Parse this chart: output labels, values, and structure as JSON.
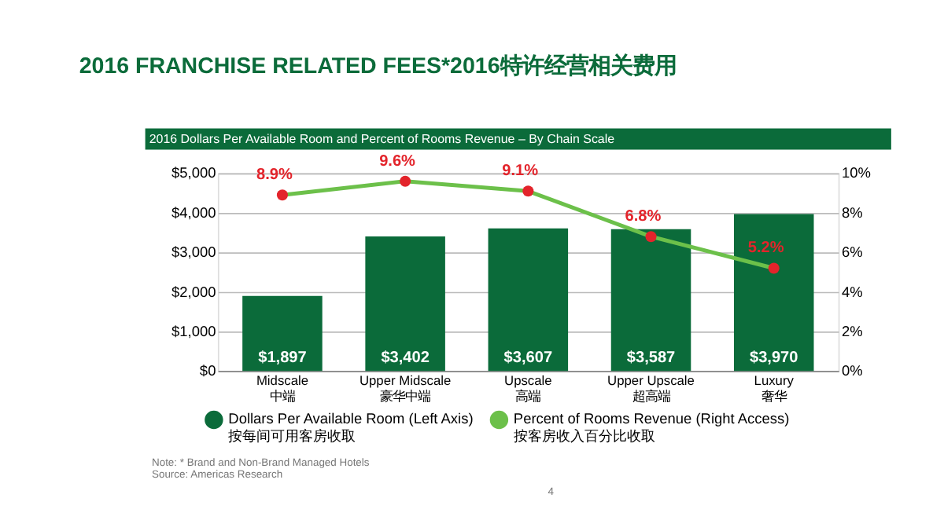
{
  "chart_data": {
    "type": "bar",
    "title": "2016 FRANCHISE RELATED FEES*2016特许经营相关费用",
    "subtitle": "2016 Dollars Per Available Room and Percent of Rooms Revenue – By Chain Scale",
    "categories": [
      "Midscale\n中端",
      "Upper Midscale\n豪华中端",
      "Upscale\n高端",
      "Upper Upscale\n超高端",
      "Luxury\n奢华"
    ],
    "series": [
      {
        "name": "Dollars Per Available Room (Left Axis)\n按每间可用客房收取",
        "color": "#0b6b3a",
        "values": [
          1897,
          3402,
          3607,
          3587,
          3970
        ],
        "value_labels": [
          "$1,897",
          "$3,402",
          "$3,607",
          "$3,587",
          "$3,970"
        ]
      },
      {
        "name": "Percent of Rooms Revenue (Right Access)\n按客房收入百分比收取",
        "type": "line",
        "axis": "y2",
        "color": "#6cc04a",
        "colors": [
          "#e3242b",
          "#e3242b",
          "#e3242b",
          "#e3242b",
          "#e3242b"
        ],
        "values": [
          8.9,
          9.6,
          9.1,
          6.8,
          5.2
        ],
        "value_labels": [
          "8.9%",
          "9.6%",
          "9.1%",
          "6.8%",
          "5.2%"
        ]
      }
    ],
    "ylim": [
      0,
      5000
    ],
    "yticks": [
      {
        "value": 0,
        "label": "$0"
      },
      {
        "value": 1000,
        "label": "$1,000"
      },
      {
        "value": 2000,
        "label": "$2,000"
      },
      {
        "value": 3000,
        "label": "$3,000"
      },
      {
        "value": 4000,
        "label": "$4,000"
      },
      {
        "value": 5000,
        "label": "$5,000"
      }
    ],
    "y2lim": [
      0,
      10
    ],
    "y2ticks": [
      {
        "value": 0,
        "label": "0%"
      },
      {
        "value": 2,
        "label": "2%"
      },
      {
        "value": 4,
        "label": "4%"
      },
      {
        "value": 6,
        "label": "6%"
      },
      {
        "value": 8,
        "label": "8%"
      },
      {
        "value": 10,
        "label": "10%"
      }
    ],
    "grid": "y",
    "legend": "bottom",
    "marker": "circle",
    "data_labels": true,
    "annotations": [
      "Note: * Brand and Non-Brand Managed Hotels",
      "Source: Americas Research",
      "4"
    ]
  }
}
